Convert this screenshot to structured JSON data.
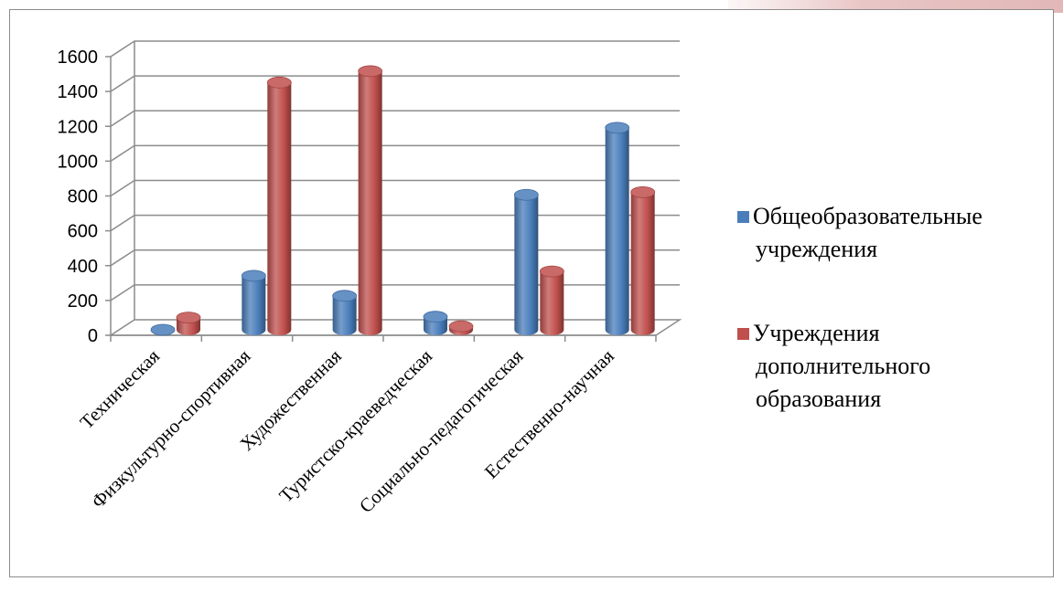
{
  "chart_data": {
    "type": "bar",
    "categories": [
      "Техническая",
      "Физкультурно-спортивная",
      "Художественная",
      "Туристско-краеведческая",
      "Социально-педагогическая",
      "Естественно-научная"
    ],
    "series": [
      {
        "name": "Общеобразовательные учреждения",
        "color": "#4a7ebb",
        "values": [
          0,
          310,
          195,
          75,
          775,
          1160
        ]
      },
      {
        "name": "Учреждения дополнительного образования",
        "color": "#c0504d",
        "values": [
          70,
          1420,
          1485,
          20,
          335,
          790
        ]
      }
    ],
    "legend_lines": [
      [
        "Общеобразовательные",
        "учреждения"
      ],
      [
        "Учреждения",
        "дополнительного",
        "образования"
      ]
    ],
    "y_ticks": [
      0,
      200,
      400,
      600,
      800,
      1000,
      1200,
      1400,
      1600
    ],
    "ylim": [
      0,
      1600
    ],
    "grid": true,
    "legend_position": "right",
    "style": "3d-cylinder"
  }
}
